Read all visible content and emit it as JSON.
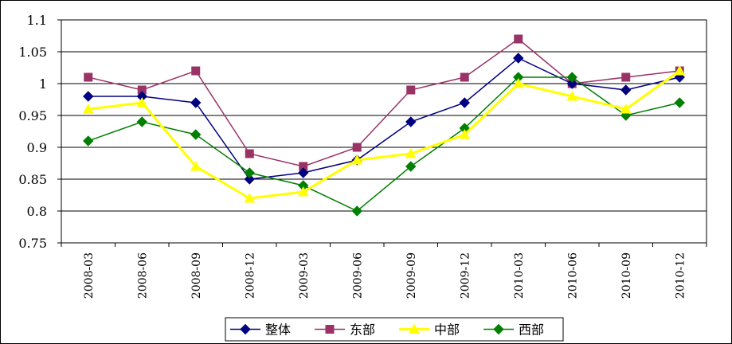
{
  "chart_data": {
    "type": "line",
    "categories": [
      "2008-03",
      "2008-06",
      "2008-09",
      "2008-12",
      "2009-03",
      "2009-06",
      "2009-09",
      "2009-12",
      "2010-03",
      "2010-06",
      "2010-09",
      "2010-12"
    ],
    "y_ticks": [
      "0.75",
      "0.8",
      "0.85",
      "0.9",
      "0.95",
      "1",
      "1.05",
      "1.1"
    ],
    "ylim": [
      0.75,
      1.1
    ],
    "grid": true,
    "legend_position": "bottom",
    "series": [
      {
        "name": "整体",
        "color": "#000080",
        "marker": "diamond",
        "values": [
          0.98,
          0.98,
          0.97,
          0.85,
          0.86,
          0.88,
          0.94,
          0.97,
          1.04,
          1.0,
          0.99,
          1.01
        ]
      },
      {
        "name": "东部",
        "color": "#993366",
        "marker": "square",
        "values": [
          1.01,
          0.99,
          1.02,
          0.89,
          0.87,
          0.9,
          0.99,
          1.01,
          1.07,
          1.0,
          1.01,
          1.02
        ]
      },
      {
        "name": "中部",
        "color": "#FFFF00",
        "marker": "triangle",
        "values": [
          0.96,
          0.97,
          0.87,
          0.82,
          0.83,
          0.88,
          0.89,
          0.92,
          1.0,
          0.98,
          0.96,
          1.02
        ]
      },
      {
        "name": "西部",
        "color": "#008000",
        "marker": "diamond",
        "values": [
          0.91,
          0.94,
          0.92,
          0.86,
          0.84,
          0.8,
          0.87,
          0.93,
          1.01,
          1.01,
          0.95,
          0.97
        ]
      }
    ]
  }
}
